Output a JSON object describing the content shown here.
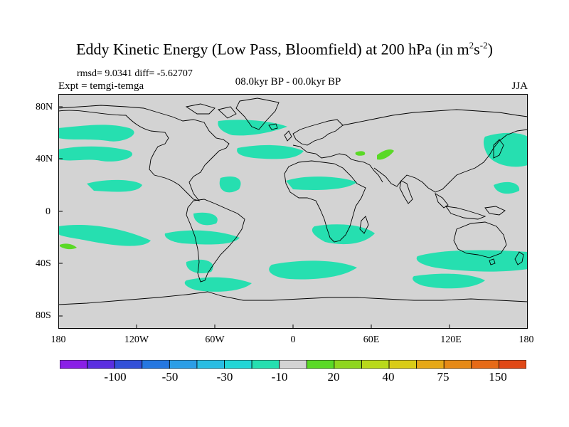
{
  "title": {
    "main": "Eddy Kinetic Energy (Low Pass, Bloomfield) at 200 hPa (in m",
    "sup1": "2",
    "mid": "s",
    "sup2": "-2",
    "end": ")"
  },
  "stats": "rmsd= 9.0341 diff= -5.62707",
  "expt": "Expt = temgi-temga",
  "period": "08.0kyr BP - 00.0kyr BP",
  "season": "JJA",
  "axes": {
    "lat_ticks": [
      "80N",
      "40N",
      "0",
      "40S",
      "80S"
    ],
    "lon_ticks": [
      "180",
      "120W",
      "60W",
      "0",
      "60E",
      "120E",
      "180"
    ]
  },
  "colors": {
    "background": "#d3d3d3",
    "neg_small": "#26dfb0",
    "pos_small": "#5ad926"
  },
  "colorbar": {
    "colors": [
      "#8a1fe6",
      "#5b2ee0",
      "#3350d8",
      "#2577e0",
      "#2c9ee6",
      "#29bde2",
      "#22d6d6",
      "#26dfb0",
      "#d3d3d3",
      "#5ad926",
      "#8fd61f",
      "#b9d91a",
      "#d9cc17",
      "#e6a817",
      "#e68a17",
      "#e66a17",
      "#e04817"
    ],
    "labels": [
      "-100",
      "-50",
      "-30",
      "-10",
      "20",
      "40",
      "75",
      "150"
    ]
  }
}
